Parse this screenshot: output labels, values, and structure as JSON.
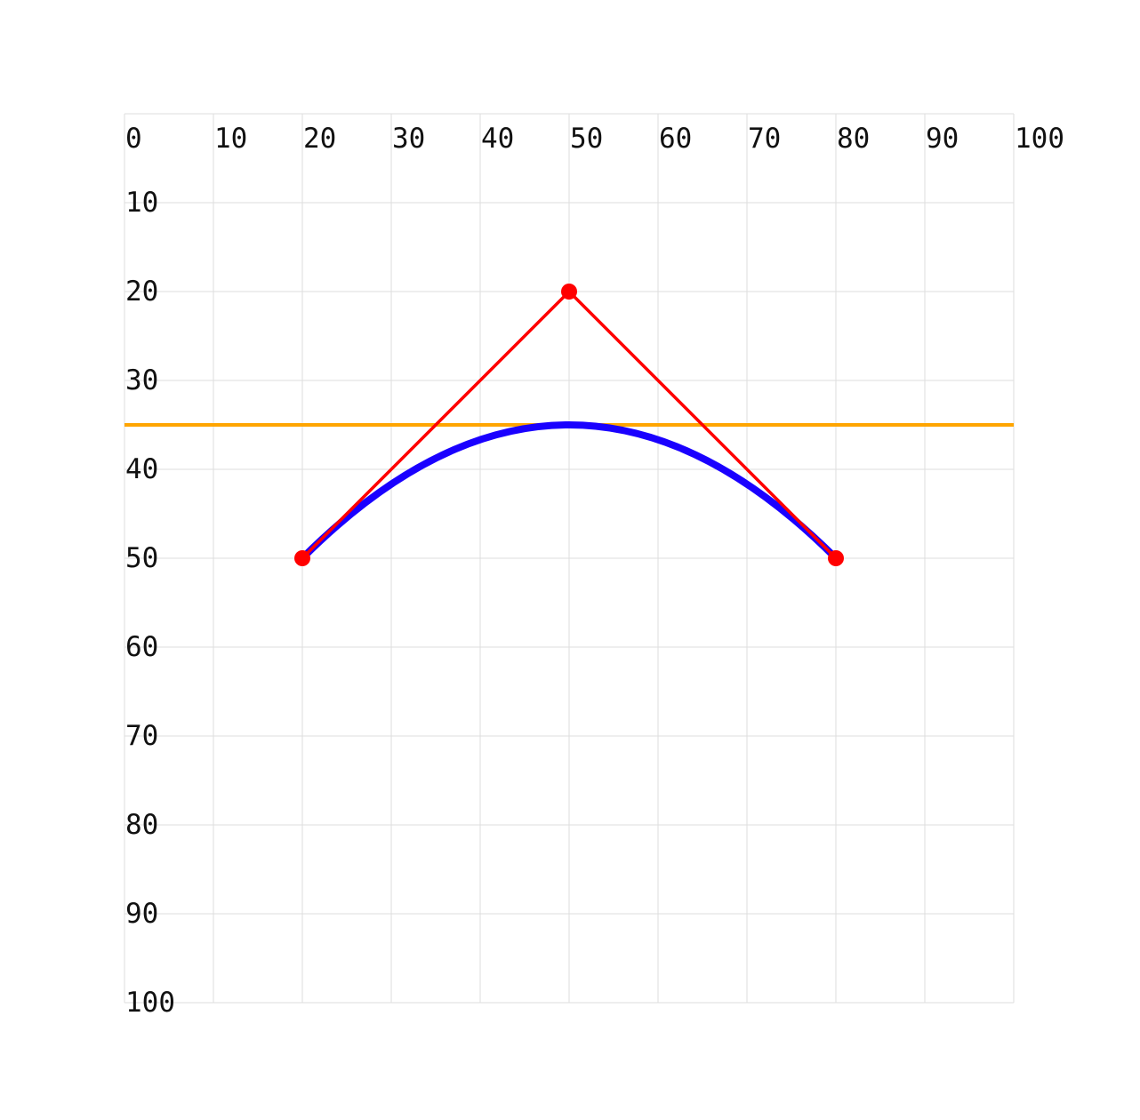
{
  "chart_data": {
    "type": "diagram",
    "x_ticks": [
      "0",
      "10",
      "20",
      "30",
      "40",
      "50",
      "60",
      "70",
      "80",
      "90",
      "100"
    ],
    "y_ticks": [
      "10",
      "20",
      "30",
      "40",
      "50",
      "60",
      "70",
      "80",
      "90",
      "100"
    ],
    "xlim": [
      0,
      100
    ],
    "ylim": [
      0,
      100
    ],
    "y_axis_direction": "down",
    "grid": true,
    "grid_step": 10,
    "bezier": {
      "type": "quadratic",
      "start": [
        20,
        50
      ],
      "control": [
        50,
        20
      ],
      "end": [
        80,
        50
      ]
    },
    "control_polygon": [
      [
        20,
        50
      ],
      [
        50,
        20
      ],
      [
        80,
        50
      ]
    ],
    "horizontal_line_y": 35
  },
  "colors": {
    "curve": "#1a00ff",
    "control": "#ff0000",
    "hline": "#ffa500",
    "grid": "#dddddd",
    "text": "#111111"
  }
}
